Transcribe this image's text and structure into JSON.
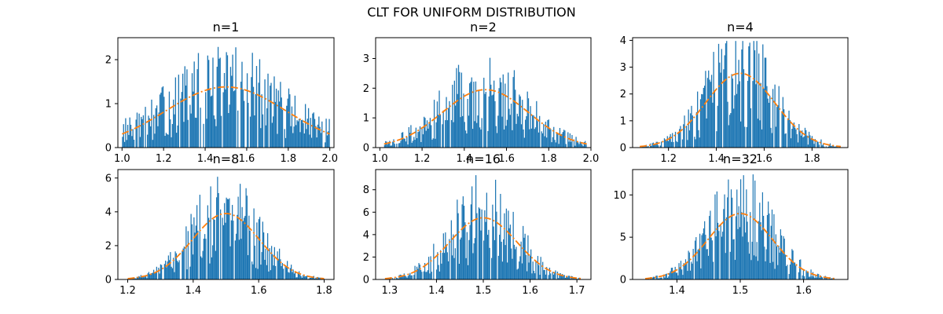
{
  "title": "CLT FOR UNIFORM DISTRIBUTION",
  "colors": {
    "bars": "#1f77b4",
    "fit": "#ff7f0e",
    "axes": "#000000"
  },
  "chart_data": [
    {
      "type": "histogram",
      "title": "n=1",
      "n": 1,
      "xlim": [
        0.98,
        2.02
      ],
      "ylim": [
        0,
        2.5
      ],
      "xticks": [
        1.0,
        1.2,
        1.4,
        1.6,
        1.8,
        2.0
      ],
      "xtick_labels": [
        "1.0",
        "1.2",
        "1.4",
        "1.6",
        "1.8",
        "2.0"
      ],
      "yticks": [
        0,
        1,
        2
      ],
      "ytick_labels": [
        "0",
        "1",
        "2"
      ],
      "hist_range": [
        1.0,
        2.0
      ],
      "bins": 200,
      "bar_height_range": [
        0.4,
        2.4
      ],
      "fit": {
        "type": "normal",
        "mean": 1.5,
        "sd": 0.289,
        "peak": 1.38,
        "style": "dashdot"
      }
    },
    {
      "type": "histogram",
      "title": "n=2",
      "n": 2,
      "xlim": [
        0.98,
        2.0
      ],
      "ylim": [
        0,
        3.7
      ],
      "xticks": [
        1.0,
        1.2,
        1.4,
        1.6,
        1.8,
        2.0
      ],
      "xtick_labels": [
        "1.0",
        "1.2",
        "1.4",
        "1.6",
        "1.8",
        "2.0"
      ],
      "yticks": [
        0,
        1,
        2,
        3
      ],
      "ytick_labels": [
        "0",
        "1",
        "2",
        "3"
      ],
      "hist_range": [
        1.02,
        1.98
      ],
      "bins": 200,
      "fit": {
        "type": "normal",
        "mean": 1.5,
        "sd": 0.204,
        "peak": 1.95,
        "style": "dashdot"
      }
    },
    {
      "type": "histogram",
      "title": "n=4",
      "n": 4,
      "xlim": [
        1.05,
        1.95
      ],
      "ylim": [
        0,
        4.1
      ],
      "xticks": [
        1.2,
        1.4,
        1.6,
        1.8
      ],
      "xtick_labels": [
        "1.2",
        "1.4",
        "1.6",
        "1.8"
      ],
      "yticks": [
        0,
        1,
        2,
        3,
        4
      ],
      "ytick_labels": [
        "0",
        "1",
        "2",
        "3",
        "4"
      ],
      "hist_range": [
        1.08,
        1.92
      ],
      "bins": 200,
      "fit": {
        "type": "normal",
        "mean": 1.5,
        "sd": 0.144,
        "peak": 2.77,
        "style": "dashdot"
      }
    },
    {
      "type": "histogram",
      "title": "n=8",
      "n": 8,
      "xlim": [
        1.17,
        1.83
      ],
      "ylim": [
        0,
        6.5
      ],
      "xticks": [
        1.2,
        1.4,
        1.6,
        1.8
      ],
      "xtick_labels": [
        "1.2",
        "1.4",
        "1.6",
        "1.8"
      ],
      "yticks": [
        0,
        2,
        4,
        6
      ],
      "ytick_labels": [
        "0",
        "2",
        "4",
        "6"
      ],
      "hist_range": [
        1.2,
        1.8
      ],
      "bins": 200,
      "fit": {
        "type": "normal",
        "mean": 1.5,
        "sd": 0.102,
        "peak": 3.9,
        "style": "dashdot"
      }
    },
    {
      "type": "histogram",
      "title": "n=16",
      "n": 16,
      "xlim": [
        1.27,
        1.73
      ],
      "ylim": [
        0,
        9.8
      ],
      "xticks": [
        1.3,
        1.4,
        1.5,
        1.6,
        1.7
      ],
      "xtick_labels": [
        "1.3",
        "1.4",
        "1.5",
        "1.6",
        "1.7"
      ],
      "yticks": [
        0,
        2,
        4,
        6,
        8
      ],
      "ytick_labels": [
        "0",
        "2",
        "4",
        "6",
        "8"
      ],
      "hist_range": [
        1.29,
        1.71
      ],
      "bins": 200,
      "fit": {
        "type": "normal",
        "mean": 1.5,
        "sd": 0.072,
        "peak": 5.5,
        "style": "dashdot"
      }
    },
    {
      "type": "histogram",
      "title": "n=32",
      "n": 32,
      "xlim": [
        1.33,
        1.67
      ],
      "ylim": [
        0,
        13
      ],
      "xticks": [
        1.4,
        1.5,
        1.6
      ],
      "xtick_labels": [
        "1.4",
        "1.5",
        "1.6"
      ],
      "yticks": [
        0,
        5,
        10
      ],
      "ytick_labels": [
        "0",
        "5",
        "10"
      ],
      "hist_range": [
        1.35,
        1.65
      ],
      "bins": 200,
      "fit": {
        "type": "normal",
        "mean": 1.5,
        "sd": 0.051,
        "peak": 7.8,
        "style": "dashdot"
      }
    }
  ]
}
